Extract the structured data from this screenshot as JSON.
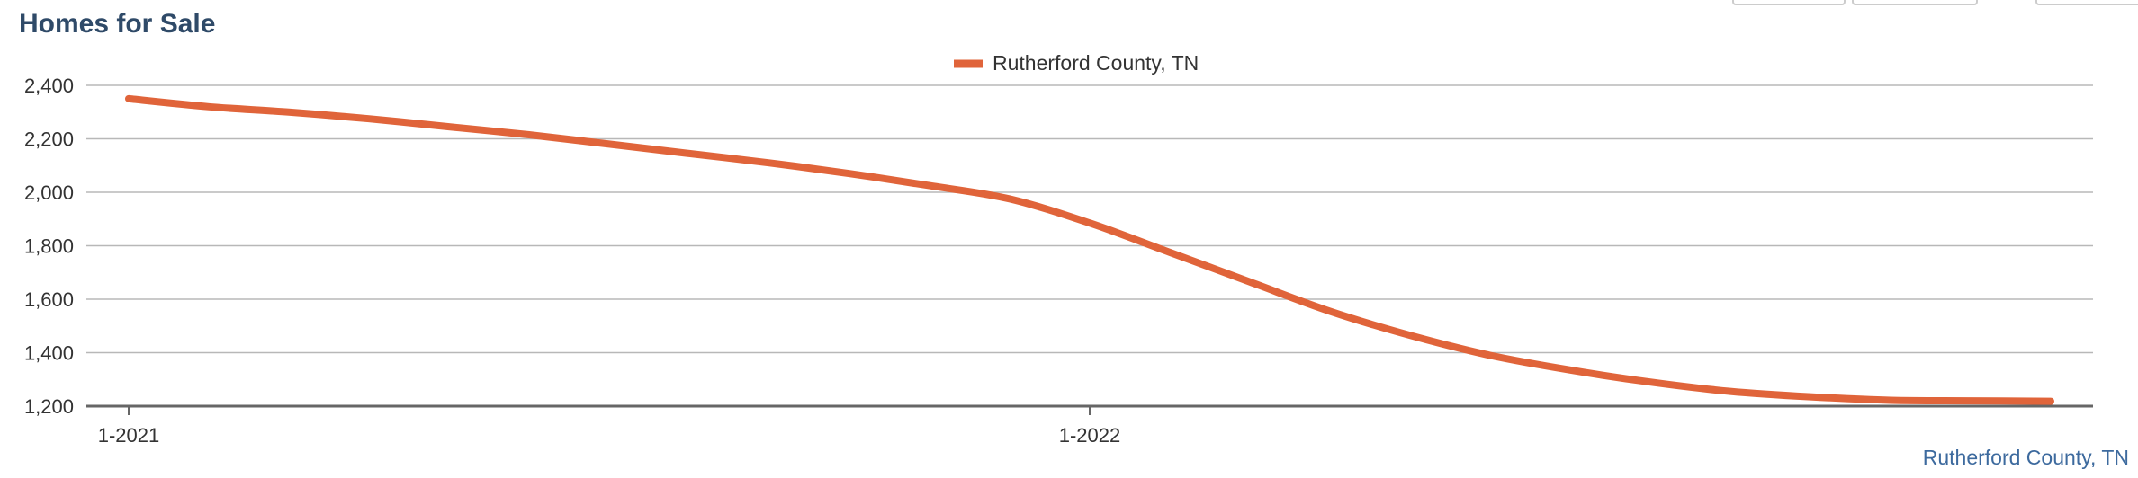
{
  "title": "Homes for Sale",
  "footer_label": "Rutherford County, TN",
  "colors": {
    "series": "#e0643a",
    "grid": "#b8b8b8",
    "axis": "#666666",
    "title": "#2f4a68",
    "footer": "#3d6a9e"
  },
  "chart_data": {
    "type": "line",
    "title": "Homes for Sale",
    "xlabel": "",
    "ylabel": "",
    "x": [
      "1-2021",
      "2-2021",
      "3-2021",
      "4-2021",
      "5-2021",
      "6-2021",
      "7-2021",
      "8-2021",
      "9-2021",
      "10-2021",
      "11-2021",
      "12-2021",
      "1-2022",
      "2-2022",
      "3-2022",
      "4-2022",
      "5-2022",
      "6-2022",
      "7-2022",
      "8-2022",
      "9-2022",
      "10-2022",
      "11-2022",
      "12-2022",
      "1-2023"
    ],
    "x_ticks": [
      "1-2021",
      "1-2022"
    ],
    "series": [
      {
        "name": "Rutherford County, TN",
        "values": [
          2350,
          2320,
          2300,
          2275,
          2245,
          2215,
          2180,
          2145,
          2110,
          2070,
          2025,
          1975,
          1885,
          1775,
          1665,
          1555,
          1465,
          1390,
          1335,
          1290,
          1255,
          1235,
          1222,
          1220,
          1218
        ]
      }
    ],
    "ylim": [
      1200,
      2400
    ],
    "y_ticks": [
      "1,200",
      "1,400",
      "1,600",
      "1,800",
      "2,000",
      "2,200",
      "2,400"
    ],
    "y_tick_values": [
      1200,
      1400,
      1600,
      1800,
      2000,
      2200,
      2400
    ],
    "grid": true,
    "legend": "top-center"
  }
}
